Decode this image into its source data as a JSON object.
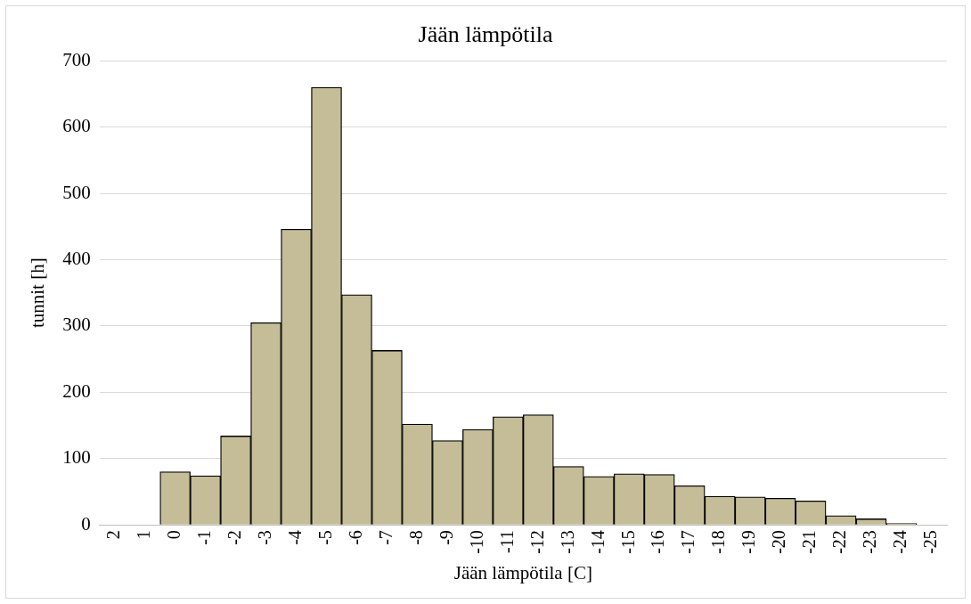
{
  "chart_data": {
    "type": "bar",
    "title": "Jään lämpötila",
    "xlabel": "Jään lämpötila [C]",
    "ylabel": "tunnit [h]",
    "categories": [
      "2",
      "1",
      "0",
      "-1",
      "-2",
      "-3",
      "-4",
      "-5",
      "-6",
      "-7",
      "-8",
      "-9",
      "-10",
      "-11",
      "-12",
      "-13",
      "-14",
      "-15",
      "-16",
      "-17",
      "-18",
      "-19",
      "-20",
      "-21",
      "-22",
      "-23",
      "-24",
      "-25"
    ],
    "values": [
      null,
      null,
      80,
      74,
      134,
      305,
      446,
      660,
      347,
      263,
      152,
      127,
      144,
      163,
      166,
      88,
      73,
      77,
      76,
      59,
      43,
      42,
      40,
      36,
      14,
      9,
      2,
      null
    ],
    "color": "#c4bd97",
    "ylim": [
      0,
      700
    ],
    "yticks": [
      0,
      100,
      200,
      300,
      400,
      500,
      600,
      700
    ],
    "grid": "y",
    "legend": false
  }
}
